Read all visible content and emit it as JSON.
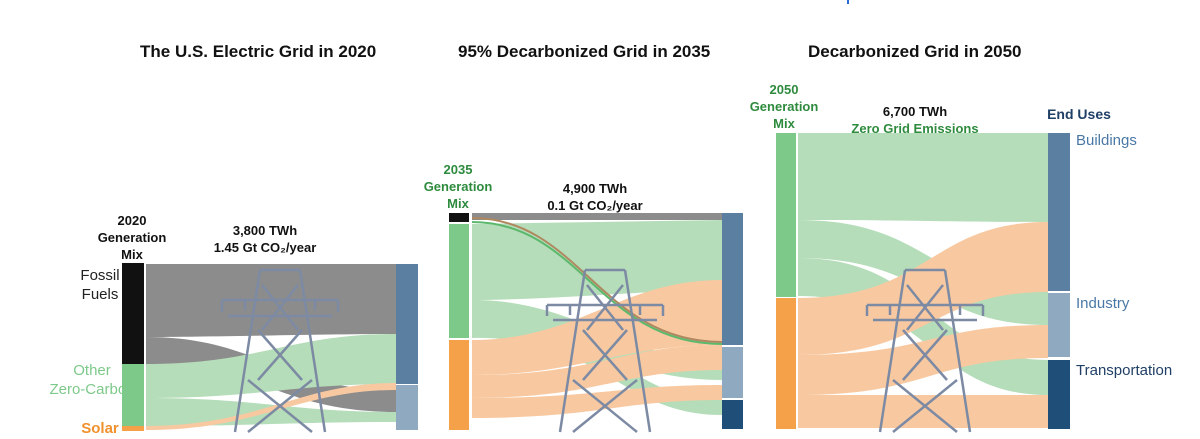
{
  "titles": {
    "p2020": "The U.S. Electric Grid in 2020",
    "p2035": "95% Decarbonized Grid in 2035",
    "p2050": "Decarbonized Grid in 2050"
  },
  "p2020": {
    "gen_mix_label": [
      "2020",
      "Generation",
      "Mix"
    ],
    "energy": "3,800 TWh",
    "emissions": "1.45 Gt CO₂/year",
    "sources": [
      {
        "name": "Fossil Fuels",
        "lines": [
          "Fossil",
          "Fuels"
        ],
        "color": "#111111"
      },
      {
        "name": "Other Zero-Carbon",
        "lines": [
          "Other",
          "Zero-Carbon"
        ],
        "color": "#7dc98a"
      },
      {
        "name": "Solar",
        "lines": [
          "Solar"
        ],
        "color": "#f4a14a"
      }
    ]
  },
  "p2035": {
    "gen_mix_label": [
      "2035",
      "Generation",
      "Mix"
    ],
    "energy": "4,900 TWh",
    "emissions": "0.1 Gt CO₂/year"
  },
  "p2050": {
    "gen_mix_label": [
      "2050",
      "Generation",
      "Mix"
    ],
    "energy": "6,700 TWh",
    "emissions": "Zero Grid Emissions",
    "end_uses_title": "End Uses",
    "end_uses": [
      "Buildings",
      "Industry",
      "Transportation"
    ]
  },
  "colors": {
    "fossil": "#111111",
    "fossil_flow": "#8c8c8c",
    "zero_carbon": "#7dc98a",
    "zero_carbon_flow": "#b5ddb9",
    "solar": "#f4a14a",
    "solar_flow": "#f8c9a1",
    "buildings": "#5a7fa0",
    "industry": "#8fa9c0",
    "transportation": "#1f4e79",
    "green_label": "#2e8b3e",
    "orange_label": "#f0912e",
    "navy_label": "#1f3f66",
    "tower": "#7d8aa3"
  }
}
